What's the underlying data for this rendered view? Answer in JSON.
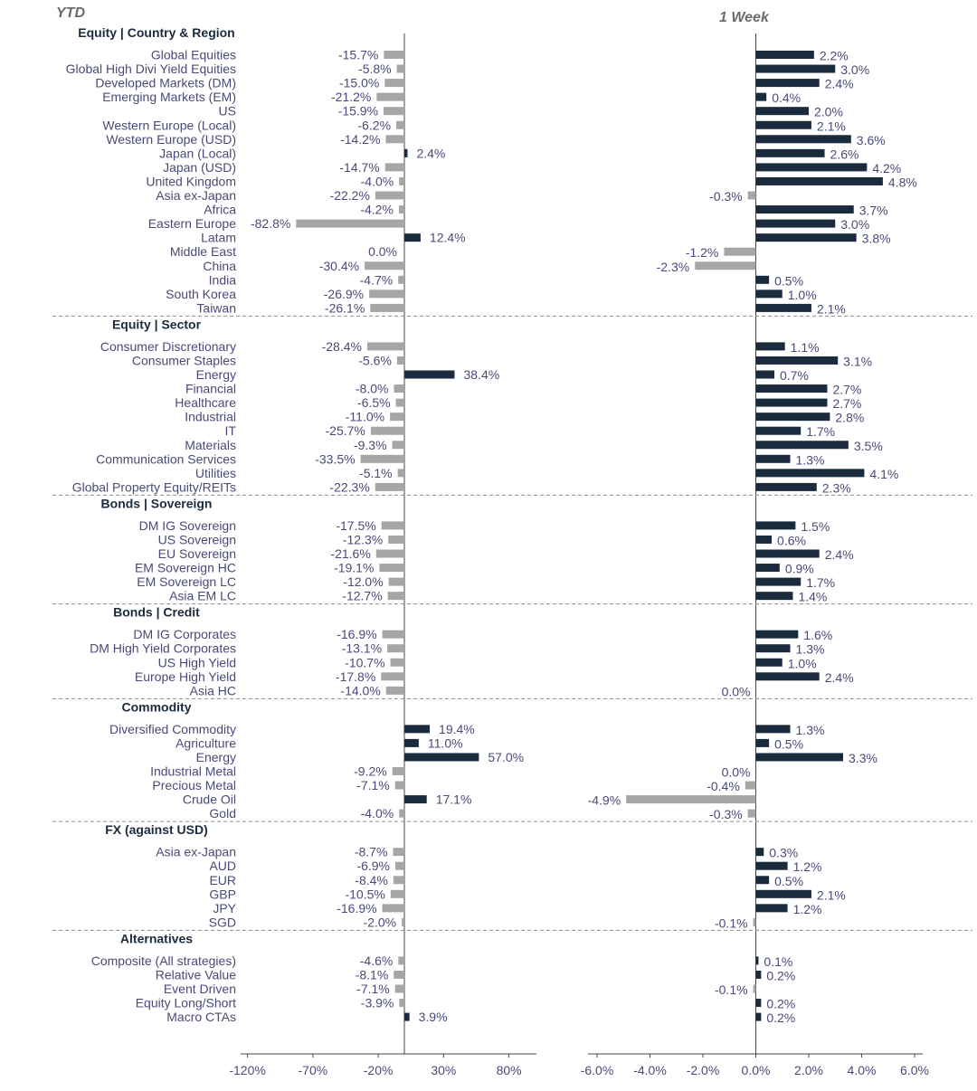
{
  "header": {
    "left_title": "YTD",
    "right_title": "1 Week"
  },
  "colors": {
    "positive": "#1b2b3e",
    "negative": "#a6a6a6",
    "label": "#4a4a7a",
    "axis_line": "#444444",
    "separator": "#8c8c8c",
    "section_title": "#1b2b3e"
  },
  "chart_data": [
    {
      "type": "bar",
      "orientation": "horizontal",
      "title": "YTD",
      "xlim": [
        -120,
        90
      ],
      "xticks": [
        -120,
        -70,
        -20,
        30,
        80
      ],
      "xtick_labels": [
        "-120%",
        "-70%",
        "-20%",
        "30%",
        "80%"
      ],
      "value_format": "percent_1dp",
      "sections": [
        {
          "title": "Equity | Country & Region",
          "categories": [
            "Global Equities",
            "Global High Divi Yield Equities",
            "Developed Markets (DM)",
            "Emerging Markets (EM)",
            "US",
            "Western Europe (Local)",
            "Western Europe (USD)",
            "Japan (Local)",
            "Japan (USD)",
            "United Kingdom",
            "Asia ex-Japan",
            "Africa",
            "Eastern Europe",
            "Latam",
            "Middle East",
            "China",
            "India",
            "South Korea",
            "Taiwan"
          ],
          "values": [
            -15.7,
            -5.8,
            -15.0,
            -21.2,
            -15.9,
            -6.2,
            -14.2,
            2.4,
            -14.7,
            -4.0,
            -22.2,
            -4.2,
            -82.8,
            12.4,
            0.0,
            -30.4,
            -4.7,
            -26.9,
            -26.1
          ]
        },
        {
          "title": "Equity | Sector",
          "categories": [
            "Consumer Discretionary",
            "Consumer Staples",
            "Energy",
            "Financial",
            "Healthcare",
            "Industrial",
            "IT",
            "Materials",
            "Communication Services",
            "Utilities",
            "Global Property Equity/REITs"
          ],
          "values": [
            -28.4,
            -5.6,
            38.4,
            -8.0,
            -6.5,
            -11.0,
            -25.7,
            -9.3,
            -33.5,
            -5.1,
            -22.3
          ]
        },
        {
          "title": "Bonds | Sovereign",
          "categories": [
            "DM IG Sovereign",
            "US Sovereign",
            "EU Sovereign",
            "EM Sovereign HC",
            "EM Sovereign LC",
            "Asia EM LC"
          ],
          "values": [
            -17.5,
            -12.3,
            -21.6,
            -19.1,
            -12.0,
            -12.7
          ]
        },
        {
          "title": "Bonds | Credit",
          "categories": [
            "DM IG Corporates",
            "DM High Yield Corporates",
            "US High Yield",
            "Europe High Yield",
            "Asia HC"
          ],
          "values": [
            -16.9,
            -13.1,
            -10.7,
            -17.8,
            -14.0
          ]
        },
        {
          "title": "Commodity",
          "categories": [
            "Diversified Commodity",
            "Agriculture",
            "Energy",
            "Industrial Metal",
            "Precious Metal",
            "Crude Oil",
            "Gold"
          ],
          "values": [
            19.4,
            11.0,
            57.0,
            -9.2,
            -7.1,
            17.1,
            -4.0
          ]
        },
        {
          "title": "FX (against USD)",
          "categories": [
            "Asia ex-Japan",
            "AUD",
            "EUR",
            "GBP",
            "JPY",
            "SGD"
          ],
          "values": [
            -8.7,
            -6.9,
            -8.4,
            -10.5,
            -16.9,
            -2.0
          ]
        },
        {
          "title": "Alternatives",
          "categories": [
            "Composite (All strategies)",
            "Relative Value",
            "Event Driven",
            "Equity Long/Short",
            "Macro CTAs"
          ],
          "values": [
            -4.6,
            -8.1,
            -7.1,
            -3.9,
            3.9
          ]
        }
      ]
    },
    {
      "type": "bar",
      "orientation": "horizontal",
      "title": "1 Week",
      "xlim": [
        -6,
        6
      ],
      "xticks": [
        -6,
        -4,
        -2,
        0,
        2,
        4,
        6
      ],
      "xtick_labels": [
        "-6.0%",
        "-4.0%",
        "-2.0%",
        "0.0%",
        "2.0%",
        "4.0%",
        "6.0%"
      ],
      "value_format": "percent_1dp",
      "sections": [
        {
          "values": [
            2.2,
            3.0,
            2.4,
            0.4,
            2.0,
            2.1,
            3.6,
            2.6,
            4.2,
            4.8,
            -0.3,
            3.7,
            3.0,
            3.8,
            -1.2,
            -2.3,
            0.5,
            1.0,
            2.1
          ]
        },
        {
          "values": [
            1.1,
            3.1,
            0.7,
            2.7,
            2.7,
            2.8,
            1.7,
            3.5,
            1.3,
            4.1,
            2.3
          ]
        },
        {
          "values": [
            1.5,
            0.6,
            2.4,
            0.9,
            1.7,
            1.4
          ]
        },
        {
          "values": [
            1.6,
            1.3,
            1.0,
            2.4,
            0.0
          ]
        },
        {
          "values": [
            1.3,
            0.5,
            3.3,
            0.0,
            -0.4,
            -4.9,
            -0.3
          ]
        },
        {
          "values": [
            0.3,
            1.2,
            0.5,
            2.1,
            1.2,
            -0.1
          ]
        },
        {
          "values": [
            0.1,
            0.2,
            -0.1,
            0.2,
            0.2
          ]
        }
      ]
    }
  ]
}
